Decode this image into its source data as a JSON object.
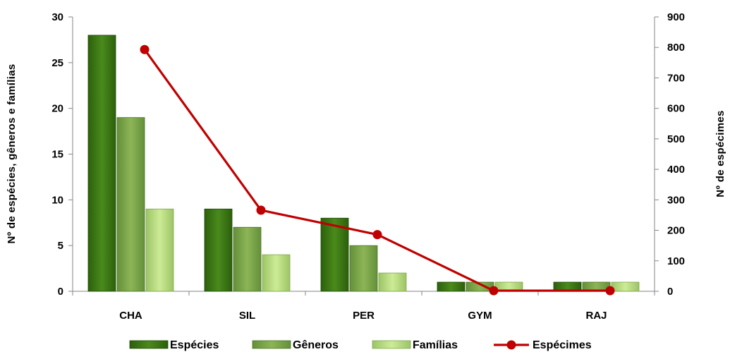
{
  "chart_data": {
    "type": "bar",
    "categories": [
      "CHA",
      "SIL",
      "PER",
      "GYM",
      "RAJ"
    ],
    "series": [
      {
        "name": "Espécies",
        "values": [
          28,
          9,
          8,
          1,
          1
        ],
        "axis": "left",
        "kind": "bar",
        "color": "#3a7a12"
      },
      {
        "name": "Gêneros",
        "values": [
          19,
          7,
          5,
          1,
          1
        ],
        "axis": "left",
        "kind": "bar",
        "color": "#7aa444"
      },
      {
        "name": "Famílias",
        "values": [
          9,
          4,
          2,
          1,
          1
        ],
        "axis": "left",
        "kind": "bar",
        "color": "#b4d97c"
      },
      {
        "name": "Espécimes",
        "values": [
          793,
          266,
          186,
          2,
          2
        ],
        "axis": "right",
        "kind": "line",
        "color": "#c00000"
      }
    ],
    "ylabel": "Nº de espécies, gêneros e famílias",
    "y2label": "Nº de espécimes",
    "xlabel": "",
    "ylim": [
      0,
      30
    ],
    "y2lim": [
      0,
      900
    ],
    "yticks": [
      0,
      5,
      10,
      15,
      20,
      25,
      30
    ],
    "y2ticks": [
      0,
      100,
      200,
      300,
      400,
      500,
      600,
      700,
      800,
      900
    ],
    "grid": false,
    "legend_position": "bottom"
  }
}
